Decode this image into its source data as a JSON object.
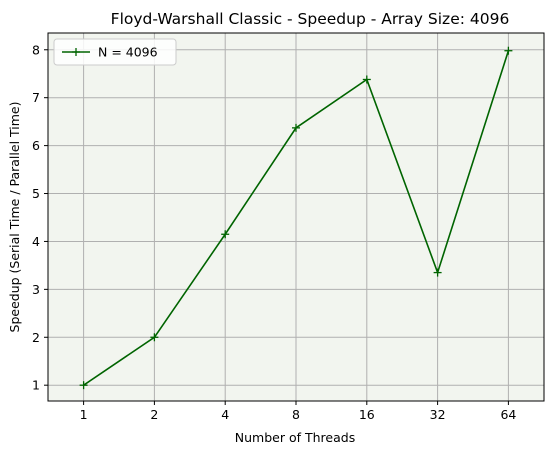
{
  "chart_data": {
    "type": "line",
    "title": "Floyd-Warshall Classic - Speedup -  Array Size: 4096",
    "xlabel": "Number of Threads",
    "ylabel": "Speedup (Serial Time / Parallel Time)",
    "x": [
      "1",
      "2",
      "4",
      "8",
      "16",
      "32",
      "64"
    ],
    "xscale": "categorical",
    "ylim": [
      0.67,
      8.35
    ],
    "yticks": [
      1,
      2,
      3,
      4,
      5,
      6,
      7,
      8
    ],
    "grid": true,
    "legend_position": "top-left",
    "plot_background": "#f2f5ef",
    "series": [
      {
        "name": "N = 4096",
        "color": "#006400",
        "marker": "+",
        "values": [
          1.0,
          2.0,
          4.15,
          6.37,
          7.38,
          3.35,
          7.98
        ]
      }
    ]
  }
}
